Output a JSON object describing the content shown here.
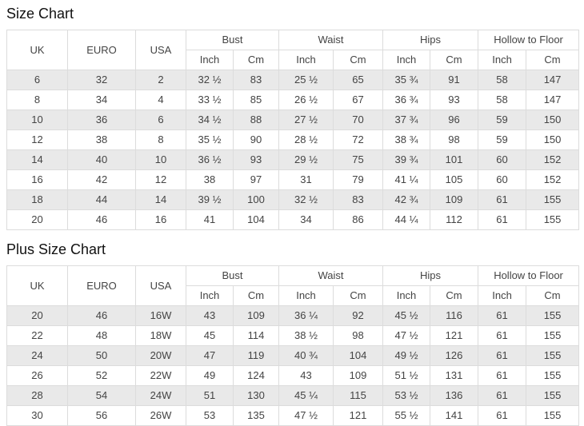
{
  "tables": [
    {
      "title": "Size Chart",
      "columns": [
        "UK",
        "EURO",
        "USA"
      ],
      "measure_groups": [
        "Bust",
        "Waist",
        "Hips",
        "Hollow to Floor"
      ],
      "unit_headers": [
        "Inch",
        "Cm"
      ],
      "rows": [
        [
          "6",
          "32",
          "2",
          "32 ½",
          "83",
          "25 ½",
          "65",
          "35 ¾",
          "91",
          "58",
          "147"
        ],
        [
          "8",
          "34",
          "4",
          "33 ½",
          "85",
          "26 ½",
          "67",
          "36 ¾",
          "93",
          "58",
          "147"
        ],
        [
          "10",
          "36",
          "6",
          "34 ½",
          "88",
          "27 ½",
          "70",
          "37 ¾",
          "96",
          "59",
          "150"
        ],
        [
          "12",
          "38",
          "8",
          "35 ½",
          "90",
          "28 ½",
          "72",
          "38 ¾",
          "98",
          "59",
          "150"
        ],
        [
          "14",
          "40",
          "10",
          "36 ½",
          "93",
          "29 ½",
          "75",
          "39 ¾",
          "101",
          "60",
          "152"
        ],
        [
          "16",
          "42",
          "12",
          "38",
          "97",
          "31",
          "79",
          "41 ¼",
          "105",
          "60",
          "152"
        ],
        [
          "18",
          "44",
          "14",
          "39 ½",
          "100",
          "32 ½",
          "83",
          "42 ¾",
          "109",
          "61",
          "155"
        ],
        [
          "20",
          "46",
          "16",
          "41",
          "104",
          "34",
          "86",
          "44 ¼",
          "112",
          "61",
          "155"
        ]
      ]
    },
    {
      "title": "Plus Size Chart",
      "columns": [
        "UK",
        "EURO",
        "USA"
      ],
      "measure_groups": [
        "Bust",
        "Waist",
        "Hips",
        "Hollow to Floor"
      ],
      "unit_headers": [
        "Inch",
        "Cm"
      ],
      "rows": [
        [
          "20",
          "46",
          "16W",
          "43",
          "109",
          "36 ¼",
          "92",
          "45 ½",
          "116",
          "61",
          "155"
        ],
        [
          "22",
          "48",
          "18W",
          "45",
          "114",
          "38 ½",
          "98",
          "47 ½",
          "121",
          "61",
          "155"
        ],
        [
          "24",
          "50",
          "20W",
          "47",
          "119",
          "40 ¾",
          "104",
          "49 ½",
          "126",
          "61",
          "155"
        ],
        [
          "26",
          "52",
          "22W",
          "49",
          "124",
          "43",
          "109",
          "51 ½",
          "131",
          "61",
          "155"
        ],
        [
          "28",
          "54",
          "24W",
          "51",
          "130",
          "45 ¼",
          "115",
          "53 ½",
          "136",
          "61",
          "155"
        ],
        [
          "30",
          "56",
          "26W",
          "53",
          "135",
          "47 ½",
          "121",
          "55 ½",
          "141",
          "61",
          "155"
        ]
      ]
    }
  ],
  "colors": {
    "row_stripe": "#e9e9e9",
    "row_plain": "#ffffff",
    "border": "#dcdcdc",
    "text": "#444444",
    "title_text": "#111111"
  }
}
